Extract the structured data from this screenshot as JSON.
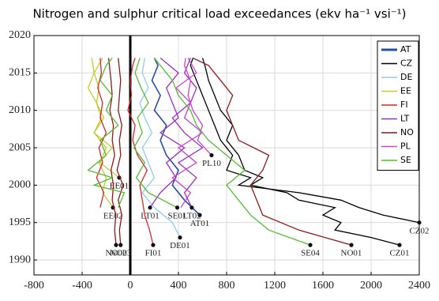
{
  "chart_data": {
    "type": "line",
    "title": "Nitrogen and sulphur critical load exceedances (ekv ha⁻¹ vsi⁻¹)",
    "xlim": [
      -800,
      2400
    ],
    "xticks": [
      -800,
      -400,
      0,
      400,
      800,
      1200,
      1600,
      2000,
      2400
    ],
    "ylim": [
      1988,
      2020
    ],
    "yticks": [
      1990,
      1995,
      2000,
      2005,
      2010,
      2015,
      2020
    ],
    "grid": true,
    "legend": "upper right",
    "series": [
      {
        "name": "AT",
        "color": "#2a4fa0",
        "lines": [
          {
            "label": "AT01",
            "years": [
              1996,
              1998,
              2000,
              2002,
              2004,
              2006,
              2008,
              2010,
              2012,
              2014,
              2016,
              2017
            ],
            "values": [
              577,
              450,
              350,
              400,
              300,
              250,
              300,
              200,
              250,
              180,
              230,
              200
            ]
          }
        ]
      },
      {
        "name": "CZ",
        "color": "#000000",
        "lines": [
          {
            "label": "CZ01",
            "years": [
              1992,
              1993,
              1994,
              1995,
              1996,
              1997,
              1998,
              1999,
              2000,
              2001,
              2002,
              2004,
              2006,
              2008,
              2010,
              2012,
              2014,
              2016,
              2017
            ],
            "values": [
              2236,
              2000,
              1700,
              1750,
              1600,
              1700,
              1400,
              1300,
              1000,
              1100,
              950,
              900,
              800,
              850,
              750,
              700,
              650,
              620,
              600
            ]
          },
          {
            "label": "CZ02",
            "years": [
              1995,
              1996,
              1997,
              1998,
              1999,
              2000,
              2001,
              2002,
              2004,
              2006,
              2008,
              2010,
              2012,
              2014,
              2016,
              2017
            ],
            "values": [
              2400,
              2100,
              1900,
              1750,
              1400,
              900,
              1000,
              800,
              850,
              750,
              700,
              650,
              600,
              550,
              500,
              520
            ]
          }
        ]
      },
      {
        "name": "DE",
        "color": "#8fcde8",
        "lines": [
          {
            "label": "DE01",
            "years": [
              1993,
              1995,
              1997,
              1999,
              2001,
              2003,
              2005,
              2007,
              2009,
              2011,
              2013,
              2015,
              2017
            ],
            "values": [
              413,
              350,
              200,
              100,
              200,
              150,
              100,
              180,
              120,
              80,
              150,
              100,
              120
            ]
          }
        ]
      },
      {
        "name": "EE",
        "color": "#c8c832",
        "lines": [
          {
            "label": "EE01",
            "years": [
              2001,
              2003,
              2005,
              2007,
              2009,
              2011,
              2013,
              2015,
              2017
            ],
            "values": [
              -92,
              -250,
              -200,
              -300,
              -220,
              -280,
              -350,
              -300,
              -320
            ]
          },
          {
            "label": "EE02",
            "years": [
              1997,
              1999,
              2001,
              2003,
              2005,
              2007,
              2009,
              2011,
              2013,
              2015,
              2017
            ],
            "values": [
              -144,
              -230,
              -200,
              -260,
              -150,
              -300,
              -240,
              -280,
              -260,
              -300,
              -230
            ]
          }
        ]
      },
      {
        "name": "FI",
        "color": "#d02a2a",
        "lines": [
          {
            "label": "FI01",
            "years": [
              1992,
              1994,
              1996,
              1998,
              2000,
              2002,
              2004,
              2006,
              2008,
              2010,
              2012,
              2014,
              2016,
              2017
            ],
            "values": [
              190,
              160,
              120,
              100,
              80,
              140,
              60,
              20,
              40,
              -20,
              10,
              0,
              20,
              40
            ]
          },
          {
            "years": [
              1997,
              1999,
              2001,
              2003,
              2005,
              2007,
              2009,
              2011,
              2013,
              2015,
              2017
            ],
            "values": [
              -250,
              -220,
              -280,
              -230,
              -260,
              -200,
              -250,
              -230,
              -270,
              -240,
              -250
            ]
          }
        ]
      },
      {
        "name": "LT",
        "color": "#9b30c0",
        "lines": [
          {
            "label": "LT01",
            "years": [
              1997,
              1999,
              2001,
              2003,
              2005,
              2007,
              2009,
              2011,
              2013,
              2015,
              2017
            ],
            "values": [
              164,
              250,
              380,
              300,
              450,
              250,
              400,
              350,
              300,
              400,
              250
            ]
          },
          {
            "label": "LT02",
            "years": [
              1997,
              1999,
              2001,
              2003,
              2005,
              2007,
              2009,
              2011,
              2013,
              2015,
              2017
            ],
            "values": [
              511,
              450,
              550,
              400,
              600,
              450,
              350,
              500,
              550,
              450,
              500
            ]
          }
        ]
      },
      {
        "name": "NO",
        "color": "#8b1a1a",
        "lines": [
          {
            "label": "NO01",
            "years": [
              1992,
              1994,
              1996,
              1998,
              2000,
              2002,
              2004,
              2006,
              2008,
              2010,
              2012,
              2014,
              2016,
              2017
            ],
            "values": [
              1836,
              1400,
              1100,
              1050,
              1000,
              1100,
              1150,
              900,
              850,
              800,
              850,
              750,
              650,
              520
            ]
          },
          {
            "label": "NO02",
            "years": [
              1992,
              1994,
              1996,
              1998,
              2000,
              2002,
              2004,
              2006,
              2008,
              2010,
              2012,
              2014,
              2017
            ],
            "values": [
              -118,
              -130,
              -120,
              -150,
              -140,
              -160,
              -130,
              -150,
              -140,
              -170,
              -150,
              -160,
              -180
            ]
          },
          {
            "label": "NO03",
            "years": [
              1992,
              1994,
              1996,
              1998,
              2000,
              2002,
              2004,
              2006,
              2008,
              2010,
              2012,
              2014,
              2017
            ],
            "values": [
              -80,
              -90,
              -70,
              -100,
              -60,
              -110,
              -80,
              -90,
              -70,
              -100,
              -90,
              -80,
              -100
            ]
          }
        ]
      },
      {
        "name": "PL",
        "color": "#c945c9",
        "lines": [
          {
            "label": "PL10",
            "years": [
              2004,
              2006,
              2008,
              2010,
              2012,
              2014,
              2016,
              2017
            ],
            "values": [
              675,
              560,
              600,
              520,
              480,
              500,
              450,
              460
            ]
          },
          {
            "years": [
              1997,
              1999,
              2001,
              2003,
              2005,
              2007,
              2009,
              2011,
              2013,
              2015,
              2017
            ],
            "values": [
              420,
              500,
              350,
              550,
              400,
              600,
              450,
              500,
              380,
              550,
              480
            ]
          }
        ]
      },
      {
        "name": "SE",
        "color": "#55bb33",
        "lines": [
          {
            "label": "SE04",
            "years": [
              1992,
              1994,
              1996,
              1998,
              2000,
              2002,
              2004,
              2006,
              2008,
              2010,
              2012,
              2014,
              2016,
              2017
            ],
            "values": [
              1495,
              1150,
              1000,
              900,
              800,
              950,
              800,
              650,
              550,
              500,
              400,
              350,
              250,
              200
            ]
          },
          {
            "label": "SE01",
            "years": [
              1997,
              1999,
              2001,
              2003,
              2005,
              2007,
              2009,
              2011,
              2013,
              2015,
              2017
            ],
            "values": [
              390,
              150,
              50,
              120,
              30,
              100,
              60,
              150,
              90,
              40,
              80
            ]
          },
          {
            "years": [
              1997,
              1999,
              2000,
              2001,
              2002,
              2004,
              2006,
              2008,
              2010,
              2012,
              2014,
              2016,
              2017
            ],
            "values": [
              -100,
              -50,
              -300,
              -150,
              -350,
              -200,
              -250,
              -100,
              -200,
              -150,
              -250,
              -200,
              -150
            ]
          }
        ]
      }
    ]
  }
}
